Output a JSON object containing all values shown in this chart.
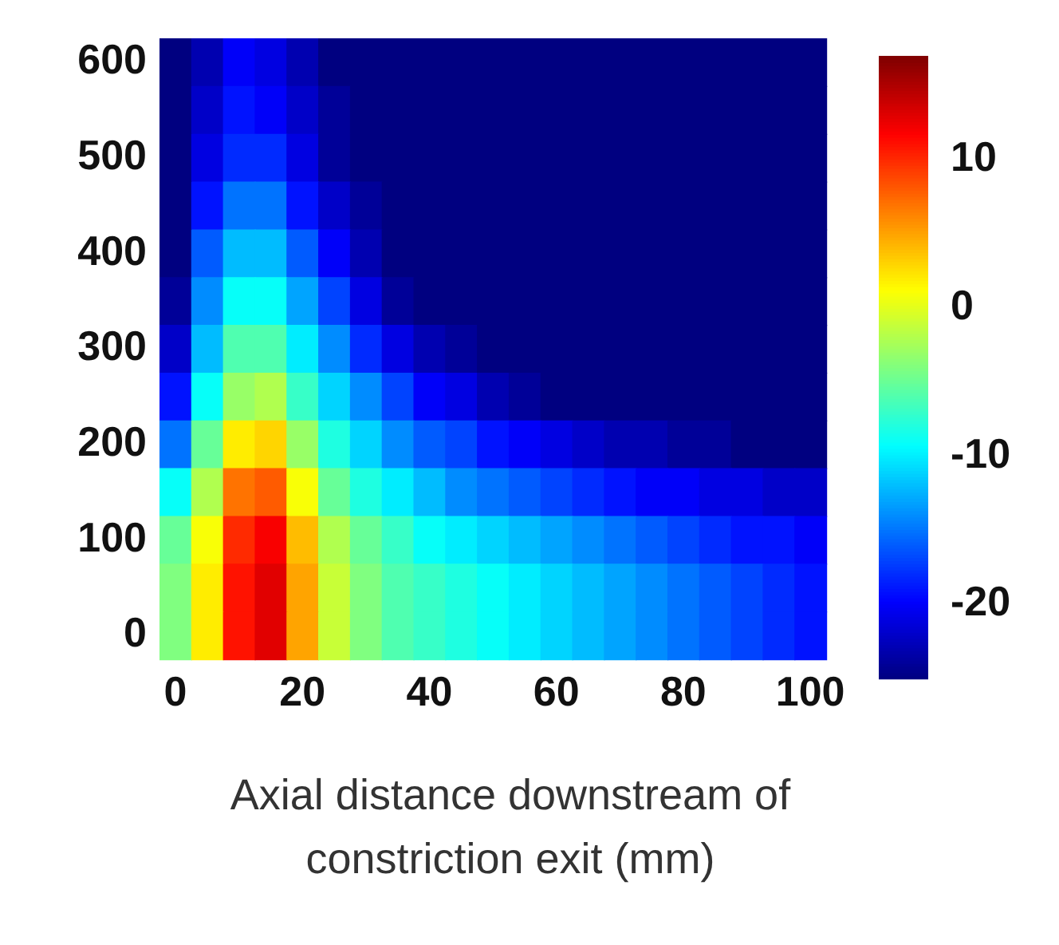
{
  "chart_data": {
    "type": "heatmap",
    "xlabel": "Axial distance downstream of constriction exit (mm)",
    "categories": [
      "0",
      null,
      null,
      null,
      "20",
      null,
      null,
      null,
      "40",
      null,
      null,
      null,
      "60",
      null,
      null,
      null,
      "80",
      null,
      null,
      null,
      "100"
    ],
    "y_categories": [
      "600",
      null,
      "500",
      null,
      "400",
      null,
      "300",
      null,
      "200",
      null,
      "100",
      null,
      "0"
    ],
    "clim": [
      -25,
      17
    ],
    "cticks": [
      -20,
      -10,
      0,
      10
    ],
    "cells": [
      [
        -25,
        -23,
        -20,
        -21,
        -23,
        -25,
        -25,
        -25,
        -25,
        -25,
        -25,
        -25,
        -25,
        -25,
        -25,
        -25,
        -25,
        -25,
        -25,
        -25,
        -25
      ],
      [
        -25,
        -22,
        -19,
        -20,
        -22,
        -24,
        -25,
        -25,
        -25,
        -25,
        -25,
        -25,
        -25,
        -25,
        -25,
        -25,
        -25,
        -25,
        -25,
        -25,
        -25
      ],
      [
        -25,
        -21,
        -18,
        -18,
        -21,
        -24,
        -25,
        -25,
        -25,
        -25,
        -25,
        -25,
        -25,
        -25,
        -25,
        -25,
        -25,
        -25,
        -25,
        -25,
        -25
      ],
      [
        -25,
        -19,
        -15,
        -15,
        -19,
        -22,
        -24,
        -25,
        -25,
        -25,
        -25,
        -25,
        -25,
        -25,
        -25,
        -25,
        -25,
        -25,
        -25,
        -25,
        -25
      ],
      [
        -25,
        -16,
        -12,
        -12,
        -16,
        -20,
        -23,
        -25,
        -25,
        -25,
        -25,
        -25,
        -25,
        -25,
        -25,
        -25,
        -25,
        -25,
        -25,
        -25,
        -25
      ],
      [
        -24,
        -14,
        -9,
        -9,
        -13,
        -17,
        -21,
        -24,
        -25,
        -25,
        -25,
        -25,
        -25,
        -25,
        -25,
        -25,
        -25,
        -25,
        -25,
        -25,
        -25
      ],
      [
        -22,
        -12,
        -6,
        -6,
        -10,
        -14,
        -18,
        -21,
        -23,
        -24,
        -25,
        -25,
        -25,
        -25,
        -25,
        -25,
        -25,
        -25,
        -25,
        -25,
        -25
      ],
      [
        -19,
        -9,
        -3,
        -2,
        -7,
        -11,
        -14,
        -17,
        -20,
        -21,
        -23,
        -24,
        -25,
        -25,
        -25,
        -25,
        -25,
        -25,
        -25,
        -25,
        -25
      ],
      [
        -15,
        -5,
        2,
        3,
        -3,
        -8,
        -11,
        -14,
        -16,
        -17,
        -19,
        -20,
        -21,
        -22,
        -23,
        -23,
        -24,
        -24,
        -25,
        -25,
        -25
      ],
      [
        -9,
        -2,
        7,
        8,
        1,
        -5,
        -8,
        -10,
        -12,
        -14,
        -15,
        -16,
        -17,
        -18,
        -19,
        -20,
        -20,
        -21,
        -21,
        -22,
        -22
      ],
      [
        -5,
        1,
        10,
        12,
        4,
        -2,
        -5,
        -7,
        -9,
        -10,
        -11,
        -12,
        -13,
        -14,
        -15,
        -16,
        -17,
        -18,
        -19,
        -19,
        -20
      ],
      [
        -4,
        2,
        11,
        13,
        5,
        -1,
        -4,
        -6,
        -7,
        -8,
        -9,
        -10,
        -11,
        -12,
        -13,
        -14,
        -15,
        -16,
        -17,
        -18,
        -19
      ],
      [
        -4,
        2,
        11,
        13,
        5,
        -1,
        -4,
        -6,
        -7,
        -8,
        -9,
        -10,
        -11,
        -12,
        -13,
        -14,
        -15,
        -16,
        -17,
        -18,
        -19
      ]
    ]
  }
}
